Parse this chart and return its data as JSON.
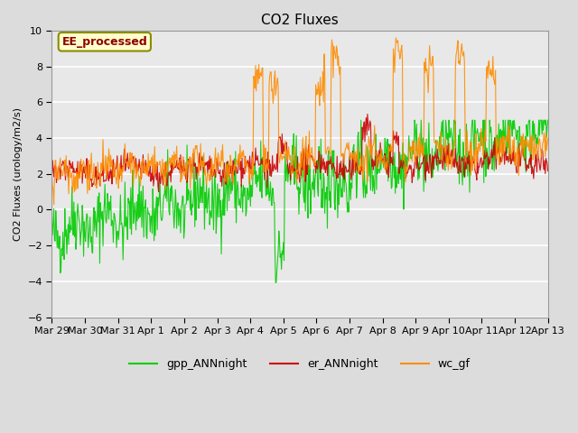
{
  "title": "CO2 Fluxes",
  "ylabel": "CO2 Fluxes (urology/m2/s)",
  "xlabel": "",
  "ylim": [
    -6,
    10
  ],
  "annotation": "EE_processed",
  "annotation_color": "#8B0000",
  "annotation_bbox_facecolor": "#FFFFCC",
  "annotation_bbox_edgecolor": "#8B8B00",
  "x_tick_labels": [
    "Mar 29",
    "Mar 30",
    "Mar 31",
    "Apr 1",
    "Apr 2",
    "Apr 3",
    "Apr 4",
    "Apr 5",
    "Apr 6",
    "Apr 7",
    "Apr 8",
    "Apr 9",
    "Apr 10",
    "Apr 11",
    "Apr 12",
    "Apr 13"
  ],
  "background_color": "#E8E8E8",
  "plot_bg_color": "#E8E8E8",
  "grid_color": "#FFFFFF",
  "legend_labels": [
    "gpp_ANNnight",
    "er_ANNnight",
    "wc_gf"
  ],
  "line_colors": [
    "#00CC00",
    "#CC0000",
    "#FF8C00"
  ],
  "seed": 42
}
